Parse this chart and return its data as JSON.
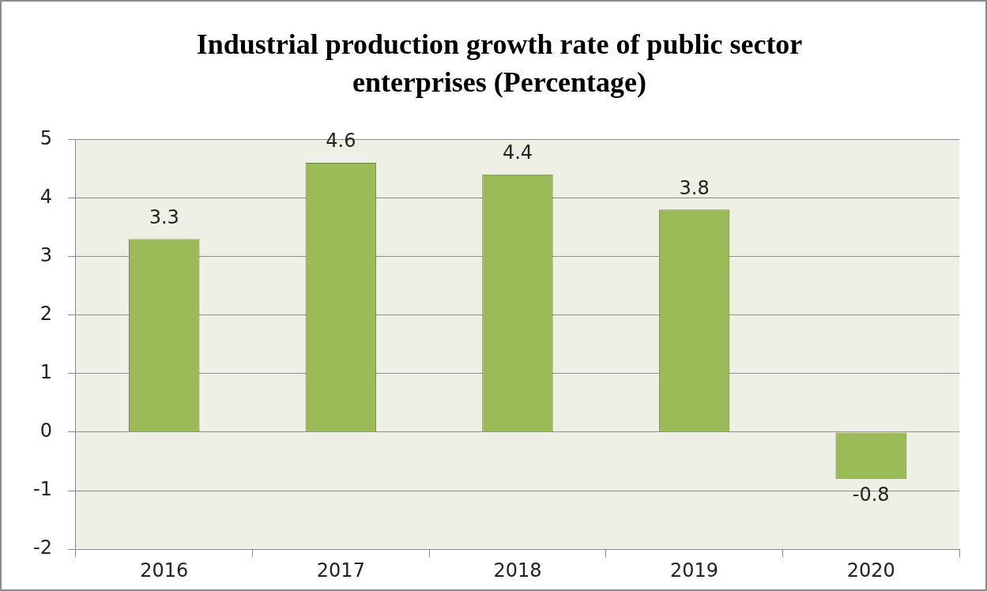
{
  "chart_data": {
    "type": "bar",
    "title": "Industrial production growth rate of public sector enterprises (Percentage)",
    "categories": [
      "2016",
      "2017",
      "2018",
      "2019",
      "2020"
    ],
    "values": [
      3.3,
      4.6,
      4.4,
      3.8,
      -0.8
    ],
    "color": "#9bbb59",
    "ylim": [
      -2,
      5
    ],
    "yticks": [
      -2,
      -1,
      0,
      1,
      2,
      3,
      4,
      5
    ],
    "grid": "y",
    "data_labels": true,
    "legend": false
  }
}
